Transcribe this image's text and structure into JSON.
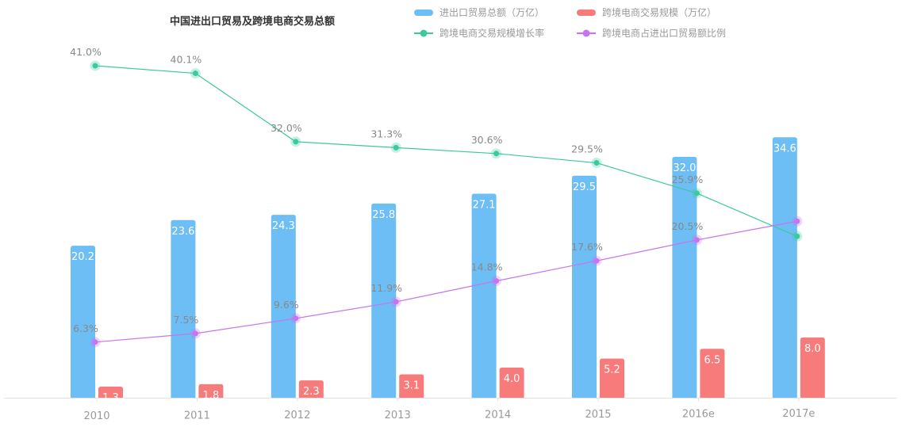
{
  "chart_data": {
    "type": "bar+line",
    "title": "中国进出口贸易及跨境电商交易总额",
    "categories": [
      "2010",
      "2011",
      "2012",
      "2013",
      "2014",
      "2015",
      "2016e",
      "2017e"
    ],
    "series": [
      {
        "name": "进出口贸易总额（万亿）",
        "kind": "bar",
        "color": "#6dbef5",
        "values": [
          20.2,
          23.6,
          24.3,
          25.8,
          27.1,
          29.5,
          32.0,
          34.6
        ],
        "labels": [
          "20.2",
          "23.6",
          "24.3",
          "25.8",
          "27.1",
          "29.5",
          "32.0",
          "34.6"
        ]
      },
      {
        "name": "跨境电商交易规模（万亿）",
        "kind": "bar",
        "color": "#f77b7b",
        "values": [
          1.3,
          1.8,
          2.3,
          3.1,
          4.0,
          5.2,
          6.5,
          8.0
        ],
        "labels": [
          "1.3",
          "1.8",
          "2.3",
          "3.1",
          "4.0",
          "5.2",
          "6.5",
          "8.0"
        ]
      },
      {
        "name": "跨境电商交易规模增长率",
        "kind": "line",
        "unit": "%",
        "color": "#3cc9a0",
        "values": [
          41.0,
          40.1,
          32.0,
          31.3,
          30.6,
          29.5,
          25.9,
          20.8
        ],
        "labels": [
          "41.0%",
          "40.1%",
          "32.0%",
          "31.3%",
          "30.6%",
          "29.5%",
          "25.9%",
          null
        ]
      },
      {
        "name": "跨境电商占进出口贸易额比例",
        "kind": "line",
        "unit": "%",
        "color": "#c873ef",
        "values": [
          6.3,
          7.5,
          9.6,
          11.9,
          14.8,
          17.6,
          20.5,
          23.1
        ],
        "labels": [
          "6.3%",
          "7.5%",
          "9.6%",
          "11.9%",
          "14.8%",
          "17.6%",
          "20.5%",
          null
        ]
      }
    ],
    "legend": "top-right",
    "grid": false
  }
}
